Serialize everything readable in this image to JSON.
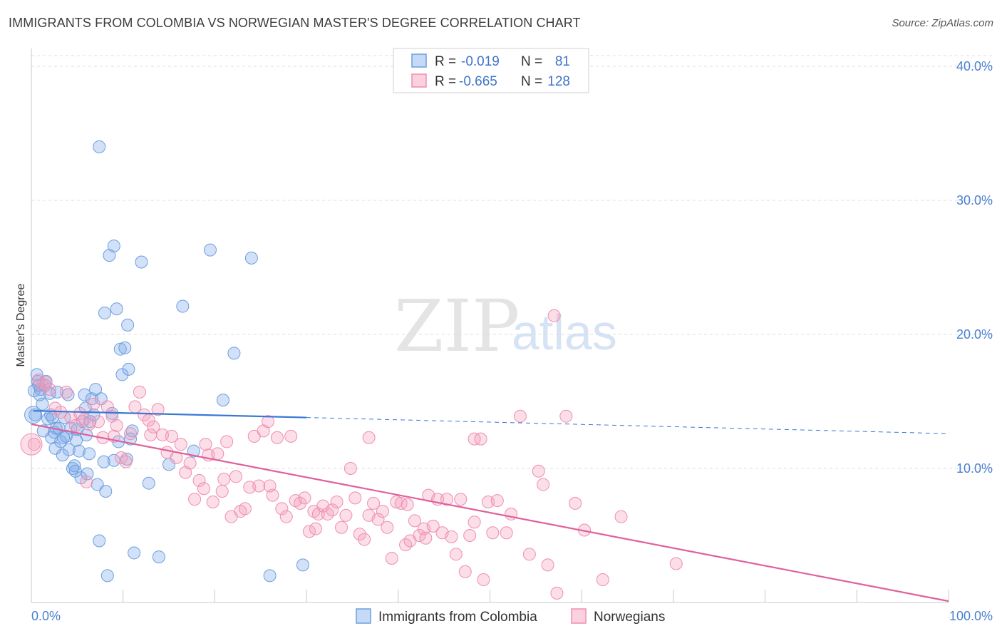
{
  "title": "IMMIGRANTS FROM COLOMBIA VS NORWEGIAN MASTER'S DEGREE CORRELATION CHART",
  "source": "Source: ZipAtlas.com",
  "watermark": {
    "zip": "ZIP",
    "atlas": "atlas"
  },
  "legend_top": [
    {
      "r_label": "R =",
      "r_value": "-0.019",
      "n_label": "N =",
      "n_value": "81",
      "color": "#6a9fe0"
    },
    {
      "r_label": "R =",
      "r_value": "-0.665",
      "n_label": "N =",
      "n_value": "128",
      "color": "#f08db0"
    }
  ],
  "legend_bottom": [
    {
      "label": "Immigrants from Colombia",
      "color": "#6a9fe0"
    },
    {
      "label": "Norwegians",
      "color": "#f08db0"
    }
  ],
  "chart_data": {
    "type": "scatter",
    "title": "IMMIGRANTS FROM COLOMBIA VS NORWEGIAN MASTER'S DEGREE CORRELATION CHART",
    "ylabel": "Master's Degree",
    "xlabel": "",
    "x_tick_labels": [
      "0.0%",
      "100.0%"
    ],
    "y_tick_labels": [
      "10.0%",
      "20.0%",
      "30.0%",
      "40.0%"
    ],
    "y_ticks": [
      10,
      20,
      30,
      40
    ],
    "xlim": [
      0,
      100
    ],
    "ylim": [
      0,
      40.8
    ],
    "grid": true,
    "legend_position": "top-center",
    "series": [
      {
        "name": "Immigrants from Colombia",
        "color": "#6a9fe0",
        "stroke": "#4a7fd0",
        "trend": {
          "x0": 0.2,
          "y0": 14.3,
          "x1": 30.0,
          "y1": 13.8,
          "dash_to_x": 100,
          "dash_to_y": 12.6
        },
        "points": [
          [
            0.3,
            15.8
          ],
          [
            0.4,
            14.0
          ],
          [
            0.6,
            17.0
          ],
          [
            0.7,
            16.5
          ],
          [
            0.8,
            16.2
          ],
          [
            1.0,
            15.9
          ],
          [
            1.2,
            14.8
          ],
          [
            1.5,
            16.2
          ],
          [
            1.8,
            13.7
          ],
          [
            2.0,
            15.6
          ],
          [
            2.2,
            12.3
          ],
          [
            2.3,
            13.8
          ],
          [
            2.5,
            12.7
          ],
          [
            2.7,
            13.0
          ],
          [
            2.8,
            15.7
          ],
          [
            3.0,
            13.0
          ],
          [
            3.2,
            12.0
          ],
          [
            3.4,
            11.0
          ],
          [
            3.6,
            13.8
          ],
          [
            3.8,
            12.4
          ],
          [
            4.0,
            15.5
          ],
          [
            4.1,
            11.4
          ],
          [
            4.3,
            13.0
          ],
          [
            4.5,
            10.0
          ],
          [
            4.7,
            10.2
          ],
          [
            4.8,
            9.8
          ],
          [
            5.0,
            12.9
          ],
          [
            5.2,
            11.3
          ],
          [
            5.4,
            9.3
          ],
          [
            5.6,
            13.5
          ],
          [
            5.8,
            15.5
          ],
          [
            6.0,
            12.5
          ],
          [
            6.1,
            9.6
          ],
          [
            6.3,
            11.1
          ],
          [
            6.6,
            15.2
          ],
          [
            6.8,
            14.0
          ],
          [
            7.0,
            15.9
          ],
          [
            7.2,
            8.8
          ],
          [
            7.4,
            4.6
          ],
          [
            7.6,
            15.2
          ],
          [
            7.9,
            10.5
          ],
          [
            8.1,
            8.3
          ],
          [
            8.3,
            2.0
          ],
          [
            8.5,
            25.9
          ],
          [
            8.8,
            14.1
          ],
          [
            9.0,
            26.6
          ],
          [
            9.3,
            21.9
          ],
          [
            9.5,
            12.0
          ],
          [
            9.7,
            18.9
          ],
          [
            9.9,
            17.0
          ],
          [
            10.2,
            19.0
          ],
          [
            10.4,
            10.7
          ],
          [
            10.5,
            20.7
          ],
          [
            10.6,
            17.4
          ],
          [
            10.8,
            12.2
          ],
          [
            11.0,
            12.8
          ],
          [
            11.2,
            3.7
          ],
          [
            12.0,
            25.4
          ],
          [
            12.8,
            8.9
          ],
          [
            13.9,
            3.4
          ],
          [
            15.0,
            10.3
          ],
          [
            16.5,
            22.1
          ],
          [
            17.7,
            11.3
          ],
          [
            19.5,
            26.3
          ],
          [
            20.9,
            15.1
          ],
          [
            22.1,
            18.6
          ],
          [
            24.0,
            25.7
          ],
          [
            26.0,
            2.0
          ],
          [
            29.6,
            2.8
          ],
          [
            7.4,
            34.0
          ],
          [
            8.0,
            21.6
          ],
          [
            1.6,
            16.5
          ],
          [
            0.9,
            15.5
          ],
          [
            2.1,
            14.0
          ],
          [
            3.5,
            12.3
          ],
          [
            4.9,
            12.1
          ],
          [
            6.4,
            13.5
          ],
          [
            9.0,
            10.6
          ],
          [
            1.3,
            12.8
          ],
          [
            2.6,
            11.5
          ],
          [
            5.9,
            14.5
          ]
        ]
      },
      {
        "name": "Norwegians",
        "color": "#f08db0",
        "stroke": "#e05a8a",
        "trend": {
          "x0": 0.0,
          "y0": 13.3,
          "x1": 100.0,
          "y1": 0.1
        },
        "points": [
          [
            0.3,
            11.8
          ],
          [
            0.8,
            16.6
          ],
          [
            1.2,
            16.2
          ],
          [
            1.6,
            16.4
          ],
          [
            2.0,
            15.9
          ],
          [
            2.6,
            14.5
          ],
          [
            3.2,
            14.2
          ],
          [
            3.8,
            15.7
          ],
          [
            4.3,
            13.8
          ],
          [
            4.8,
            13.2
          ],
          [
            5.3,
            14.1
          ],
          [
            5.8,
            13.7
          ],
          [
            6.3,
            13.3
          ],
          [
            6.8,
            14.8
          ],
          [
            7.3,
            13.5
          ],
          [
            7.8,
            12.3
          ],
          [
            8.3,
            14.6
          ],
          [
            8.8,
            13.9
          ],
          [
            9.3,
            13.2
          ],
          [
            9.8,
            10.8
          ],
          [
            10.3,
            10.5
          ],
          [
            10.8,
            12.6
          ],
          [
            11.3,
            14.6
          ],
          [
            11.8,
            15.7
          ],
          [
            12.3,
            14.0
          ],
          [
            12.8,
            13.6
          ],
          [
            13.3,
            13.1
          ],
          [
            13.8,
            14.4
          ],
          [
            14.3,
            12.5
          ],
          [
            14.8,
            11.2
          ],
          [
            15.3,
            12.4
          ],
          [
            15.8,
            10.8
          ],
          [
            16.3,
            11.8
          ],
          [
            16.8,
            9.7
          ],
          [
            17.3,
            10.4
          ],
          [
            17.8,
            7.7
          ],
          [
            18.3,
            9.1
          ],
          [
            18.8,
            8.5
          ],
          [
            19.3,
            11.0
          ],
          [
            19.8,
            7.5
          ],
          [
            20.3,
            11.1
          ],
          [
            20.8,
            8.3
          ],
          [
            21.3,
            12.0
          ],
          [
            21.8,
            6.4
          ],
          [
            22.3,
            9.4
          ],
          [
            22.8,
            6.8
          ],
          [
            23.3,
            7.0
          ],
          [
            23.8,
            8.6
          ],
          [
            24.3,
            12.4
          ],
          [
            24.8,
            8.7
          ],
          [
            25.3,
            12.8
          ],
          [
            25.8,
            13.5
          ],
          [
            26.3,
            8.0
          ],
          [
            26.8,
            12.3
          ],
          [
            27.3,
            7.0
          ],
          [
            27.8,
            6.4
          ],
          [
            28.3,
            12.4
          ],
          [
            28.8,
            7.6
          ],
          [
            29.3,
            7.4
          ],
          [
            29.8,
            7.8
          ],
          [
            30.3,
            5.3
          ],
          [
            30.8,
            6.8
          ],
          [
            31.3,
            6.6
          ],
          [
            31.8,
            7.2
          ],
          [
            32.3,
            6.6
          ],
          [
            32.8,
            6.9
          ],
          [
            33.3,
            7.5
          ],
          [
            33.8,
            5.6
          ],
          [
            34.3,
            6.5
          ],
          [
            34.8,
            10.0
          ],
          [
            35.3,
            7.8
          ],
          [
            35.8,
            5.1
          ],
          [
            36.3,
            4.7
          ],
          [
            36.8,
            6.5
          ],
          [
            37.3,
            7.4
          ],
          [
            37.8,
            6.2
          ],
          [
            38.3,
            6.8
          ],
          [
            38.8,
            5.6
          ],
          [
            39.3,
            3.3
          ],
          [
            39.8,
            7.5
          ],
          [
            40.3,
            7.4
          ],
          [
            40.8,
            4.3
          ],
          [
            41.3,
            4.6
          ],
          [
            41.8,
            6.1
          ],
          [
            42.3,
            5.0
          ],
          [
            42.8,
            5.5
          ],
          [
            43.3,
            8.0
          ],
          [
            43.8,
            5.7
          ],
          [
            44.3,
            7.7
          ],
          [
            44.8,
            5.2
          ],
          [
            45.3,
            7.7
          ],
          [
            45.8,
            4.9
          ],
          [
            46.3,
            3.6
          ],
          [
            46.8,
            7.7
          ],
          [
            47.3,
            2.3
          ],
          [
            47.8,
            5.0
          ],
          [
            48.3,
            6.0
          ],
          [
            49.3,
            1.7
          ],
          [
            49.8,
            7.5
          ],
          [
            50.3,
            5.2
          ],
          [
            50.8,
            7.6
          ],
          [
            51.8,
            5.2
          ],
          [
            52.3,
            6.6
          ],
          [
            53.3,
            13.9
          ],
          [
            54.3,
            3.6
          ],
          [
            55.3,
            9.8
          ],
          [
            56.3,
            2.8
          ],
          [
            57.3,
            0.7
          ],
          [
            58.3,
            13.9
          ],
          [
            59.3,
            7.4
          ],
          [
            60.3,
            5.4
          ],
          [
            62.3,
            1.7
          ],
          [
            64.3,
            6.4
          ],
          [
            70.3,
            2.9
          ],
          [
            36.8,
            12.3
          ],
          [
            48.3,
            12.2
          ],
          [
            55.8,
            8.8
          ],
          [
            19.0,
            11.8
          ],
          [
            9.0,
            12.4
          ],
          [
            13.0,
            12.5
          ],
          [
            21.0,
            9.2
          ],
          [
            26.0,
            8.7
          ],
          [
            31.0,
            5.5
          ],
          [
            41.0,
            7.3
          ],
          [
            43.0,
            4.8
          ],
          [
            49.0,
            12.2
          ],
          [
            57.0,
            21.4
          ],
          [
            6.0,
            9.0
          ]
        ]
      }
    ]
  }
}
